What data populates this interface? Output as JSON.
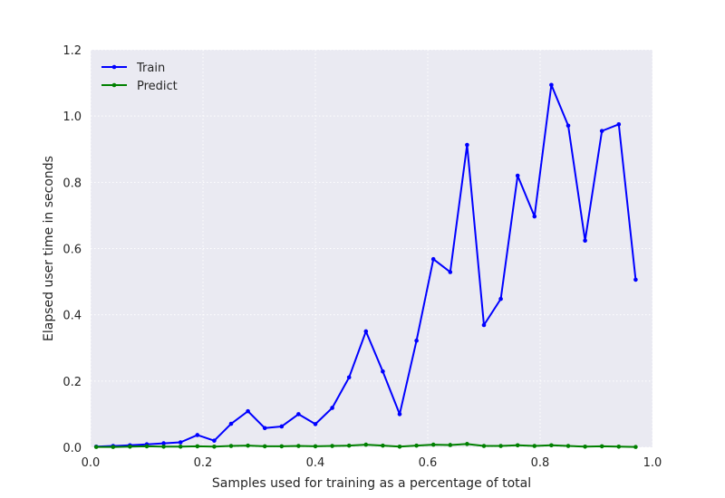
{
  "chart_data": {
    "type": "line",
    "title": "",
    "xlabel": "Samples used for training as a percentage of total",
    "ylabel": "Elapsed user time in seconds",
    "xlim": [
      0.0,
      1.0
    ],
    "ylim": [
      0.0,
      1.2
    ],
    "xticks": [
      0.0,
      0.2,
      0.4,
      0.6,
      0.8,
      1.0
    ],
    "xtick_labels": [
      "0.0",
      "0.2",
      "0.4",
      "0.6",
      "0.8",
      "1.0"
    ],
    "yticks": [
      0.0,
      0.2,
      0.4,
      0.6,
      0.8,
      1.0,
      1.2
    ],
    "ytick_labels": [
      "0.0",
      "0.2",
      "0.4",
      "0.6",
      "0.8",
      "1.0",
      "1.2"
    ],
    "grid": true,
    "legend_position": "top-left",
    "background_color": "#eaeaf2",
    "x": [
      0.01,
      0.04,
      0.07,
      0.1,
      0.13,
      0.16,
      0.19,
      0.22,
      0.25,
      0.28,
      0.31,
      0.34,
      0.37,
      0.4,
      0.43,
      0.46,
      0.49,
      0.52,
      0.55,
      0.58,
      0.61,
      0.64,
      0.67,
      0.7,
      0.73,
      0.76,
      0.79,
      0.82,
      0.85,
      0.88,
      0.91,
      0.94,
      0.97
    ],
    "series": [
      {
        "name": "Train",
        "color": "#0000ff",
        "values": [
          0.002,
          0.004,
          0.006,
          0.009,
          0.012,
          0.015,
          0.037,
          0.02,
          0.071,
          0.109,
          0.058,
          0.063,
          0.1,
          0.07,
          0.119,
          0.211,
          0.35,
          0.229,
          0.1,
          0.322,
          0.568,
          0.529,
          0.913,
          0.369,
          0.448,
          0.82,
          0.697,
          1.094,
          0.971,
          0.624,
          0.955,
          0.975,
          0.506
        ]
      },
      {
        "name": "Predict",
        "color": "#008000",
        "values": [
          0.001,
          0.001,
          0.002,
          0.003,
          0.002,
          0.002,
          0.003,
          0.002,
          0.004,
          0.005,
          0.003,
          0.003,
          0.004,
          0.003,
          0.004,
          0.005,
          0.008,
          0.005,
          0.002,
          0.005,
          0.008,
          0.007,
          0.01,
          0.004,
          0.004,
          0.006,
          0.004,
          0.006,
          0.004,
          0.002,
          0.003,
          0.002,
          0.001
        ]
      }
    ]
  }
}
